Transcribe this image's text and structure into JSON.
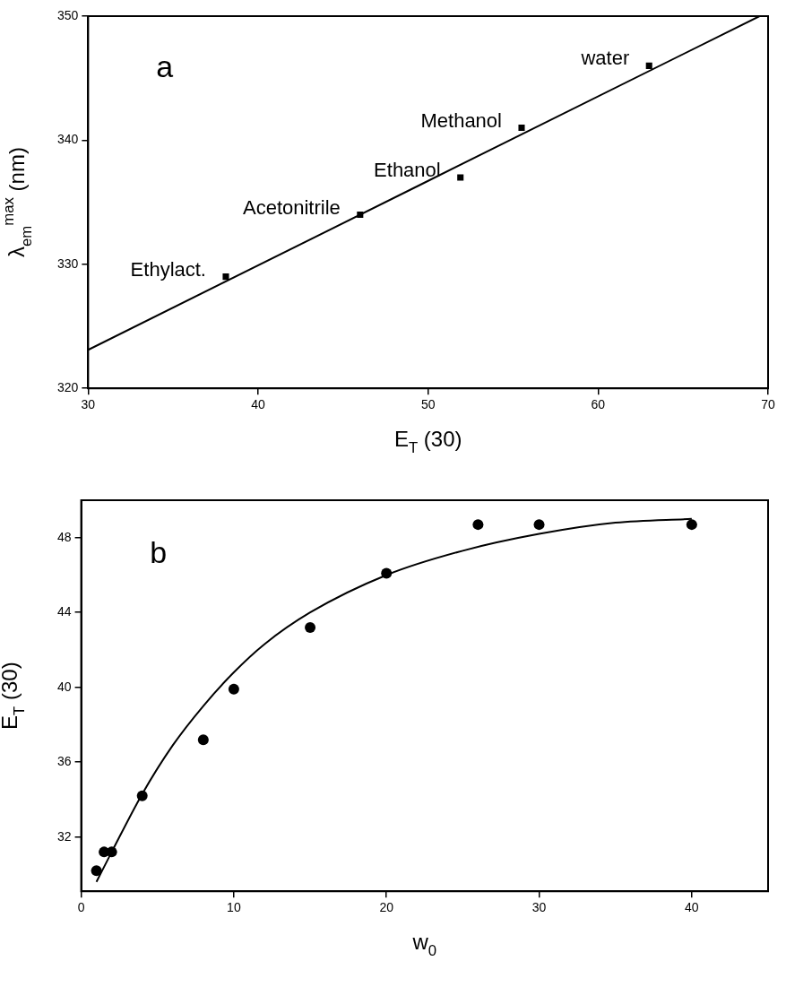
{
  "chart_data": [
    {
      "type": "scatter",
      "xlabel": "E$_{T}$ (30)",
      "ylabel": "λ$_{em}$$^{max}$ (nm)",
      "xlim": [
        30,
        70
      ],
      "ylim": [
        320,
        350
      ],
      "xticks": [
        30,
        40,
        50,
        60,
        70
      ],
      "yticks": [
        320,
        330,
        340,
        350
      ],
      "grid": false,
      "legend": false,
      "marker": "square",
      "annotations": [
        "a",
        {
          "text": "Ethylact.",
          "x": 38.1,
          "y": 329
        },
        {
          "text": "Acetonitrile",
          "x": 46,
          "y": 334
        },
        {
          "text": "Ethanol",
          "x": 51.9,
          "y": 337
        },
        {
          "text": "Methanol",
          "x": 55.5,
          "y": 341
        },
        {
          "text": "water",
          "x": 63,
          "y": 346
        }
      ],
      "series": [
        {
          "type": "scatter",
          "color": "#000000",
          "x": [
            38.1,
            46,
            51.9,
            55.5,
            63
          ],
          "values": [
            329,
            334,
            337,
            341,
            346
          ]
        },
        {
          "type": "line",
          "color": "#000000",
          "marker": "none",
          "line_style": "solid",
          "x": [
            30,
            69.5
          ],
          "values": [
            323.1,
            350
          ]
        }
      ]
    },
    {
      "type": "scatter",
      "xlabel": "w$_{0}$",
      "ylabel": "E$_{T}$ (30)",
      "xlim": [
        0,
        45
      ],
      "ylim": [
        29.1,
        50
      ],
      "xticks": [
        0,
        10,
        20,
        30,
        40
      ],
      "yticks": [
        32,
        36,
        40,
        44,
        48
      ],
      "grid": false,
      "legend": false,
      "marker": "circle",
      "annotations": [
        "b"
      ],
      "series": [
        {
          "type": "scatter",
          "color": "#000000",
          "x": [
            1,
            1.5,
            2,
            4,
            8,
            10,
            15,
            20,
            26,
            30,
            40
          ],
          "values": [
            30.2,
            31.2,
            31.2,
            34.2,
            37.2,
            39.9,
            43.2,
            46.1,
            48.7,
            48.7,
            48.7
          ]
        },
        {
          "type": "line",
          "color": "#000000",
          "marker": "none",
          "line_style": "solid",
          "x": [
            1,
            2,
            4,
            6,
            8,
            10,
            12,
            15,
            20,
            25,
            30,
            35,
            40
          ],
          "values": [
            29.6,
            31.2,
            34.3,
            36.9,
            39.0,
            40.8,
            42.3,
            44.0,
            46.0,
            47.3,
            48.2,
            48.8,
            49.0
          ]
        }
      ]
    }
  ]
}
